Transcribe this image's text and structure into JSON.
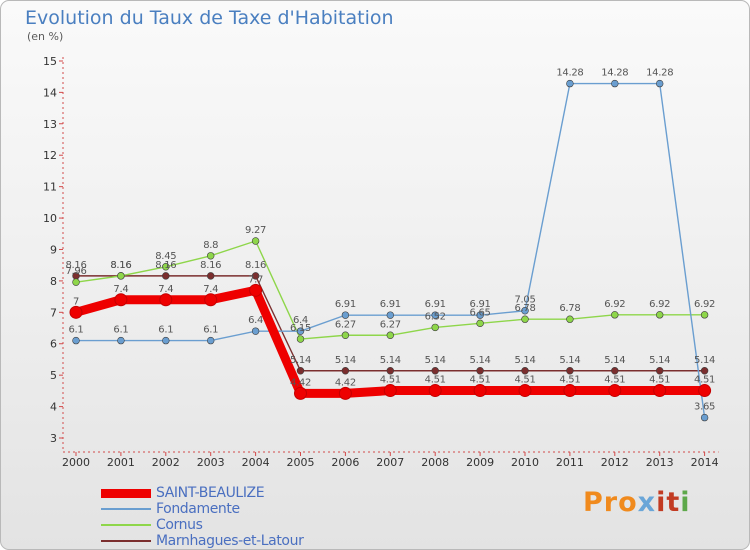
{
  "title": "Evolution du Taux de Taxe d'Habitation",
  "subtitle": "(en %)",
  "logo": {
    "text": "Proxiti",
    "parts": [
      "Pro",
      "x",
      "it",
      "i"
    ]
  },
  "chart_data": {
    "type": "line",
    "title": "Evolution du Taux de Taxe d'Habitation",
    "ylabel": "(en %)",
    "ylim": [
      3,
      15
    ],
    "yticks": [
      "3",
      "4",
      "5",
      "6",
      "7",
      "8",
      "9",
      "10",
      "11",
      "12",
      "13",
      "14",
      "15"
    ],
    "categories": [
      "2000",
      "2001",
      "2002",
      "2003",
      "2004",
      "2005",
      "2006",
      "2007",
      "2008",
      "2009",
      "2010",
      "2011",
      "2012",
      "2013",
      "2014"
    ],
    "grid": false,
    "legend_position": "bottom-left",
    "series": [
      {
        "name": "SAINT-BEAULIZE",
        "color": "#ee0000",
        "values": [
          7,
          7.4,
          7.4,
          7.4,
          7.7,
          4.42,
          4.42,
          4.51,
          4.51,
          4.51,
          4.51,
          4.51,
          4.51,
          4.51,
          4.51
        ],
        "labels": [
          "7",
          "7.4",
          "7.4",
          "7.4",
          "7.7",
          "4.42",
          "4.42",
          "4.51",
          "4.51",
          "4.51",
          "4.51",
          "4.51",
          "4.51",
          "4.51",
          "4.51"
        ]
      },
      {
        "name": "Fondamente",
        "color": "#6a9ed0",
        "values": [
          6.1,
          6.1,
          6.1,
          6.1,
          6.4,
          6.4,
          6.91,
          6.91,
          6.91,
          6.91,
          7.05,
          14.28,
          14.28,
          14.28,
          3.65
        ],
        "labels": [
          "6.1",
          "6.1",
          "6.1",
          "6.1",
          "6.4",
          "6.4",
          "6.91",
          "6.91",
          "6.91",
          "6.91",
          "7.05",
          "14.28",
          "14.28",
          "14.28",
          "3.65"
        ]
      },
      {
        "name": "Cornus",
        "color": "#8ed64a",
        "values": [
          7.96,
          8.16,
          8.45,
          8.8,
          9.27,
          6.15,
          6.27,
          6.27,
          6.52,
          6.65,
          6.78,
          6.78,
          6.92,
          6.92,
          6.92
        ],
        "labels": [
          "7.96",
          "8.16",
          "8.45",
          "8.8",
          "9.27",
          "6.15",
          "6.27",
          "6.27",
          "6.52",
          "6.65",
          "6.78",
          "6.78",
          "6.92",
          "6.92",
          "6.92"
        ]
      },
      {
        "name": "Marnhagues-et-Latour",
        "color": "#7b2e2e",
        "values": [
          8.16,
          8.16,
          8.16,
          8.16,
          8.16,
          5.14,
          5.14,
          5.14,
          5.14,
          5.14,
          5.14,
          5.14,
          5.14,
          5.14,
          5.14
        ],
        "labels": [
          "8.16",
          "8.16",
          "8.16",
          "8.16",
          "8.16",
          "5.14",
          "5.14",
          "5.14",
          "5.14",
          "5.14",
          "5.14",
          "5.14",
          "5.14",
          "5.14",
          "5.14"
        ]
      }
    ]
  }
}
